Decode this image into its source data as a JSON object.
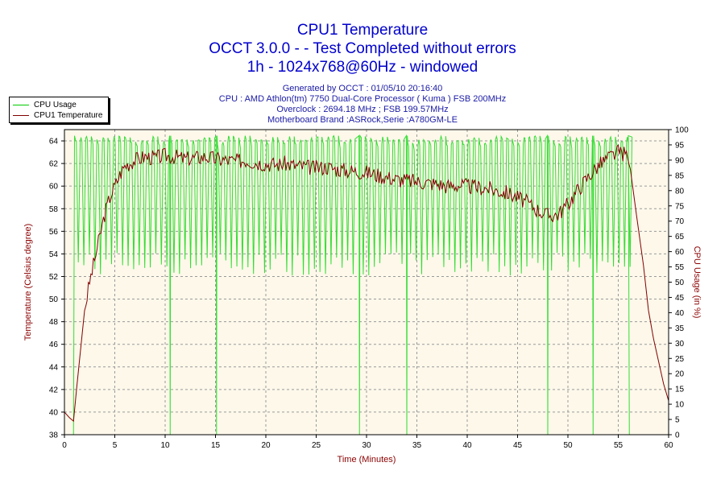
{
  "header": {
    "title_lines": [
      "CPU1 Temperature",
      "OCCT 3.0.0 -  - Test Completed without errors",
      "1h - 1024x768@60Hz - windowed"
    ],
    "info_lines": [
      "Generated by OCCT : 01/05/10 20:16:40",
      "CPU : AMD Athlon(tm) 7750 Dual-Core Processor ( Kuma ) FSB 200MHz",
      "Overclock : 2694.18 MHz ; FSB 199.57MHz",
      "Motherboard Brand :ASRock,Serie :A780GM-LE"
    ]
  },
  "legend": {
    "items": [
      {
        "label": "CPU Usage",
        "color": "#00cc00"
      },
      {
        "label": "CPU1 Temperature",
        "color": "#800000"
      }
    ]
  },
  "colors": {
    "plot_background": "#fdf8ea",
    "grid": "#9a9a9a",
    "usage_line": "#33dd33",
    "temperature_line": "#800000",
    "axis_label": "#8b0000"
  },
  "chart_data": {
    "type": "line",
    "xlabel": "Time (Minutes)",
    "ylabel_left": "Temperature (Celsius degree)",
    "ylabel_right": "CPU Usage (in %)",
    "xlim": [
      0,
      60
    ],
    "ylim_left": [
      38,
      65
    ],
    "ylim_right": [
      0,
      100
    ],
    "x_ticks": [
      0,
      5,
      10,
      15,
      20,
      25,
      30,
      35,
      40,
      45,
      50,
      55,
      60
    ],
    "y_left_ticks": [
      38,
      40,
      42,
      44,
      46,
      48,
      50,
      52,
      54,
      56,
      58,
      60,
      62,
      64
    ],
    "y_right_ticks": [
      0,
      5,
      10,
      15,
      20,
      25,
      30,
      35,
      40,
      45,
      50,
      55,
      60,
      65,
      70,
      75,
      80,
      85,
      90,
      95,
      100
    ],
    "grid": true,
    "legend_position": "top-left",
    "series": [
      {
        "name": "CPU Usage",
        "axis": "right",
        "pattern": "oscillating between ~52% and ~98% while test running",
        "x": [
          0,
          0.9,
          1.0,
          1.3,
          10.4,
          10.5,
          10.6,
          15.0,
          15.1,
          15.2,
          29.2,
          29.3,
          29.4,
          33.9,
          34.0,
          34.1,
          47.9,
          48.0,
          48.1,
          52.4,
          52.5,
          52.6,
          56.0,
          56.1,
          56.2,
          60
        ],
        "y": [
          0,
          0,
          98,
          97,
          97,
          0,
          97,
          97,
          0,
          97,
          97,
          0,
          97,
          97,
          0,
          97,
          97,
          0,
          97,
          97,
          0,
          97,
          97,
          0,
          0,
          0
        ],
        "min_active": 52,
        "max_active": 98,
        "active_range": [
          1,
          56
        ]
      },
      {
        "name": "CPU1 Temperature",
        "axis": "left",
        "x": [
          0,
          0.5,
          0.9,
          1.2,
          1.6,
          2.0,
          2.5,
          3.0,
          3.5,
          4.0,
          4.5,
          5.0,
          5.5,
          6.0,
          7.0,
          8.0,
          9.0,
          10.0,
          11.0,
          12.0,
          13.0,
          14.0,
          15.0,
          16.0,
          17.0,
          18.0,
          19.0,
          20.0,
          21.0,
          22.0,
          23.0,
          24.0,
          25.0,
          26.0,
          27.0,
          28.0,
          29.0,
          30.0,
          31.0,
          32.0,
          33.0,
          34.0,
          35.0,
          36.0,
          37.0,
          38.0,
          39.0,
          40.0,
          41.0,
          42.0,
          43.0,
          44.0,
          45.0,
          46.0,
          47.0,
          48.0,
          49.0,
          50.0,
          51.0,
          52.0,
          53.0,
          54.0,
          55.0,
          55.8,
          56.2,
          56.8,
          57.5,
          58.0,
          58.5,
          59.0,
          59.5,
          60.0
        ],
        "y": [
          40.0,
          39.5,
          39.2,
          42.0,
          45.5,
          49.0,
          51.5,
          53.5,
          55.5,
          57.5,
          59.0,
          60.0,
          61.0,
          61.8,
          62.3,
          62.6,
          62.5,
          62.7,
          62.6,
          62.4,
          62.5,
          62.6,
          62.4,
          62.3,
          62.2,
          62.3,
          62.1,
          62.0,
          61.9,
          62.0,
          61.8,
          61.7,
          61.6,
          61.7,
          61.5,
          61.4,
          61.3,
          61.2,
          61.0,
          60.8,
          60.6,
          60.5,
          60.4,
          60.3,
          60.2,
          60.0,
          60.1,
          60.0,
          59.9,
          59.8,
          59.6,
          59.4,
          59.0,
          58.5,
          57.9,
          57.4,
          57.5,
          58.4,
          59.7,
          60.8,
          61.8,
          62.5,
          63.0,
          62.8,
          61.5,
          57.5,
          53.0,
          49.0,
          46.5,
          44.5,
          42.5,
          41.0
        ]
      }
    ]
  }
}
